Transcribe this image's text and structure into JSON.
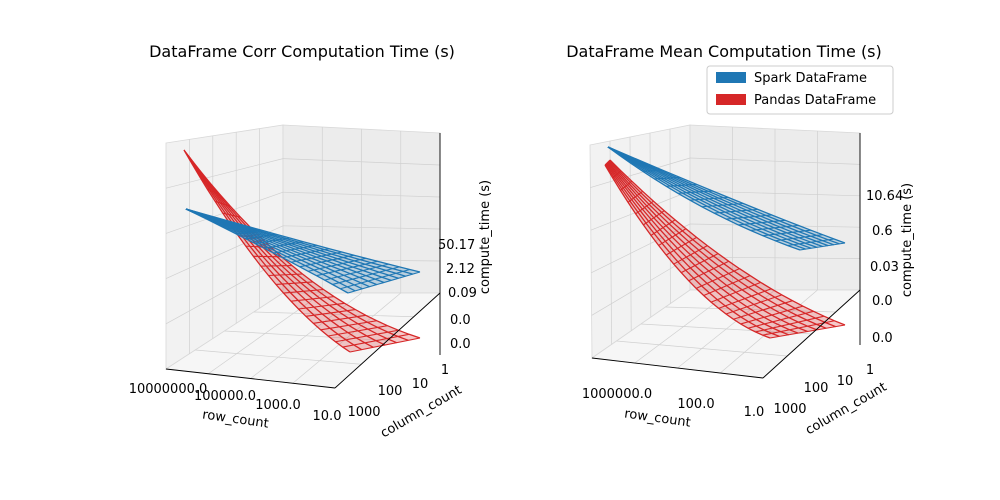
{
  "chart_data": [
    {
      "type": "surface",
      "title": "DataFrame Corr Computation Time (s)",
      "xlabel": "row_count",
      "ylabel": "column_count",
      "zlabel": "compute_time (s)",
      "x_ticks": [
        "10000000.0",
        "100000.0",
        "1000.0",
        "10.0"
      ],
      "y_ticks": [
        "1000",
        "100",
        "10",
        "1"
      ],
      "z_ticks": [
        "0.0",
        "0.0",
        "0.09",
        "2.12",
        "50.17"
      ],
      "x_scale": "log",
      "y_scale": "log",
      "z_scale": "log",
      "series": [
        {
          "name": "Spark DataFrame",
          "color": "#1f77b4"
        },
        {
          "name": "Pandas DataFrame",
          "color": "#d62728"
        }
      ]
    },
    {
      "type": "surface",
      "title": "DataFrame Mean Computation Time (s)",
      "xlabel": "row_count",
      "ylabel": "column_count",
      "zlabel": "compute_time (s)",
      "x_ticks": [
        "1000000.0",
        "100.0",
        "1.0"
      ],
      "y_ticks": [
        "1000",
        "100",
        "10",
        "1"
      ],
      "z_ticks": [
        "0.0",
        "0.0",
        "0.03",
        "0.6",
        "10.64"
      ],
      "x_scale": "log",
      "y_scale": "log",
      "z_scale": "log",
      "legend": {
        "placement": "top-right"
      },
      "series": [
        {
          "name": "Spark DataFrame",
          "color": "#1f77b4"
        },
        {
          "name": "Pandas DataFrame",
          "color": "#d62728"
        }
      ]
    }
  ]
}
